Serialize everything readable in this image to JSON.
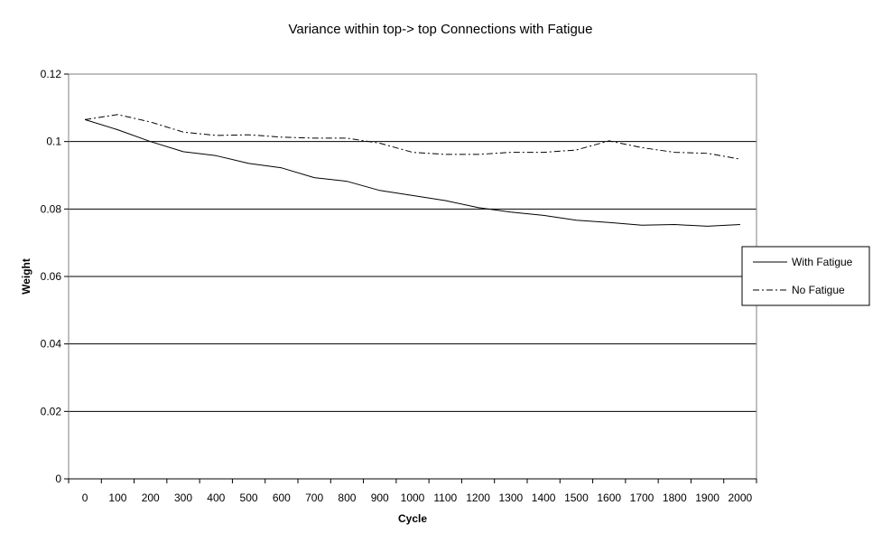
{
  "chart_data": {
    "type": "line",
    "title": "Variance within top-> top Connections with Fatigue",
    "xlabel": "Cycle",
    "ylabel": "Weight",
    "xlim": [
      0,
      2000
    ],
    "ylim": [
      0,
      0.12
    ],
    "grid": true,
    "legend_position": "right",
    "x_ticks": [
      "0",
      "100",
      "200",
      "300",
      "400",
      "500",
      "600",
      "700",
      "800",
      "900",
      "1000",
      "1100",
      "1200",
      "1300",
      "1400",
      "1500",
      "1600",
      "1700",
      "1800",
      "1900",
      "2000"
    ],
    "y_ticks": [
      "0",
      "0.02",
      "0.04",
      "0.06",
      "0.08",
      "0.1",
      "0.12"
    ],
    "x": [
      0,
      100,
      200,
      300,
      400,
      500,
      600,
      700,
      800,
      900,
      1000,
      1100,
      1200,
      1300,
      1400,
      1500,
      1600,
      1700,
      1800,
      1900,
      2000
    ],
    "series": [
      {
        "name": "With Fatigue",
        "style": "solid",
        "values": [
          0.1065,
          0.1035,
          0.1,
          0.097,
          0.0958,
          0.0935,
          0.0922,
          0.0893,
          0.0882,
          0.0855,
          0.084,
          0.0825,
          0.0804,
          0.0791,
          0.0781,
          0.0767,
          0.076,
          0.0752,
          0.0754,
          0.0749,
          0.0754
        ]
      },
      {
        "name": "No Fatigue",
        "style": "dash-dot",
        "values": [
          0.1065,
          0.108,
          0.1058,
          0.1028,
          0.1018,
          0.102,
          0.1013,
          0.101,
          0.101,
          0.0995,
          0.0968,
          0.0962,
          0.0962,
          0.0968,
          0.0968,
          0.0975,
          0.1002,
          0.0982,
          0.0968,
          0.0965,
          0.0948
        ]
      }
    ],
    "colors": {
      "line": "#000000",
      "background": "#ffffff",
      "grid": "#000000"
    }
  }
}
